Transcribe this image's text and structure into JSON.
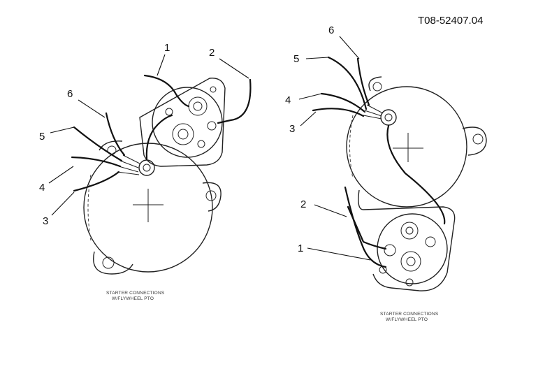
{
  "reference_id": "T08-52407.04",
  "left_view": {
    "callouts": [
      "1",
      "2",
      "6",
      "5",
      "4",
      "3"
    ],
    "caption_line1": "STARTER CONNECTIONS",
    "caption_line2": "W/FLYWHEEL PTO"
  },
  "right_view": {
    "callouts": [
      "6",
      "5",
      "4",
      "3",
      "2",
      "1"
    ],
    "caption_line1": "STARTER CONNECTIONS",
    "caption_line2": "W/FLYWHEEL PTO"
  }
}
